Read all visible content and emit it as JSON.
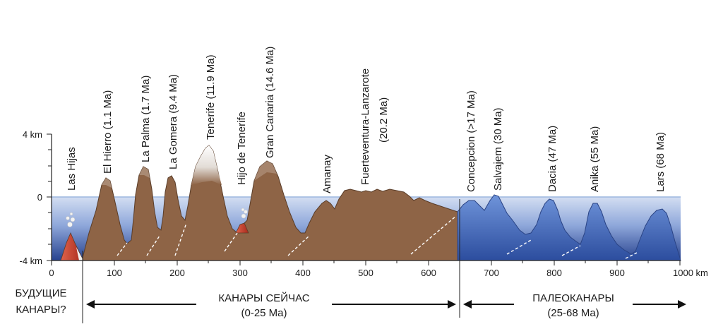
{
  "y_axis": {
    "top_label": "4 km",
    "zero_label": "0",
    "bottom_label": "-4 km"
  },
  "x_axis": {
    "ticks": [
      "0",
      "100",
      "200",
      "300",
      "400",
      "500",
      "600",
      "700",
      "800",
      "900",
      "1000 km"
    ]
  },
  "islands": [
    {
      "id": "las-hijas",
      "label": "Las Hijas"
    },
    {
      "id": "el-hierro",
      "label": "El Hierro (1.1 Ma)"
    },
    {
      "id": "la-palma",
      "label": "La Palma (1.7 Ma)"
    },
    {
      "id": "la-gomera",
      "label": "La Gomera (9.4 Ma)"
    },
    {
      "id": "tenerife",
      "label": "Tenerife (11.9 Ma)"
    },
    {
      "id": "hijo-de-tenerife",
      "label": "Hijo de Tenerife"
    },
    {
      "id": "gran-canaria",
      "label": "Gran Canaria (14.6 Ma)"
    },
    {
      "id": "amanay",
      "label": "Amanay"
    },
    {
      "id": "fuerteventura-lanzarote",
      "label": "Fuerteventura-Lanzarote",
      "label2": "(20.2 Ma)"
    },
    {
      "id": "concepcion",
      "label": "Concepcion (>17 Ma)"
    },
    {
      "id": "salvajem",
      "label": "Salvajem (30 Ma)"
    },
    {
      "id": "dacia",
      "label": "Dacia (47 Ma)"
    },
    {
      "id": "anika",
      "label": "Anika (55 Ma)"
    },
    {
      "id": "lars",
      "label": "Lars (68 Ma)"
    }
  ],
  "regions": {
    "future": {
      "line1": "БУДУЩИЕ",
      "line2": "КАНАРЫ?"
    },
    "present": {
      "line1": "КАНАРЫ СЕЙЧАС",
      "line2": "(0-25 Ma)"
    },
    "paleo": {
      "line1": "ПАЛЕОКАНАРЫ",
      "line2": "(25-68 Ma)"
    }
  },
  "colors": {
    "sea_top": "#c8d6ef",
    "sea_bottom": "#2e4a9c",
    "sea_line": "#8fb0d8",
    "island_fill": "#8e6446",
    "seamount_fill": "#3f64bd",
    "snow": "#f2f2f2",
    "volcano_red": "#c0392b"
  }
}
